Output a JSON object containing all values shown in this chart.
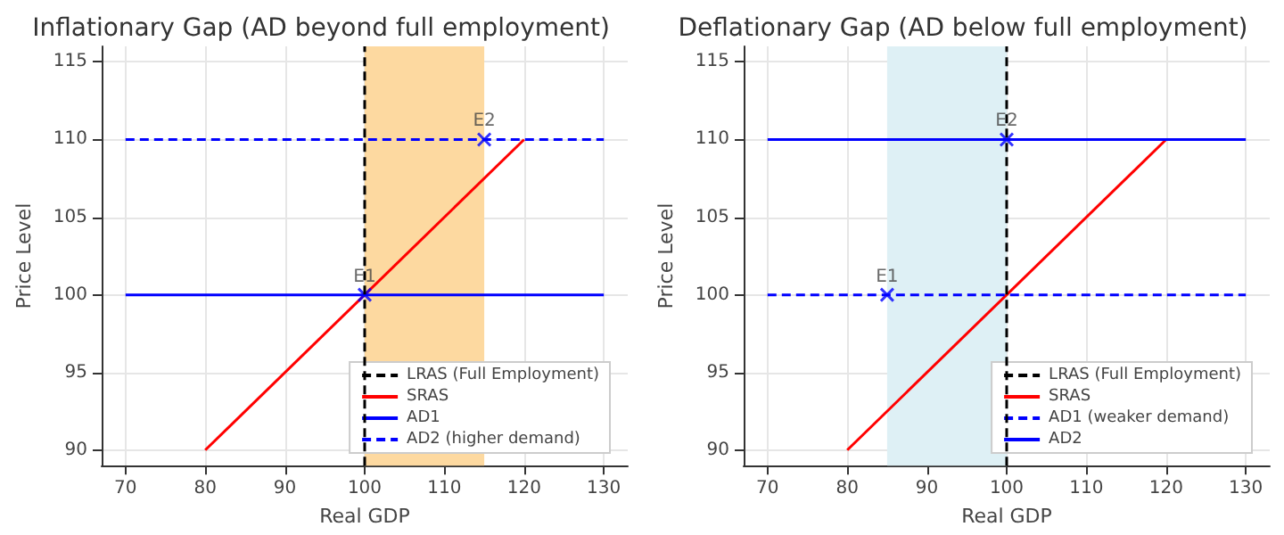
{
  "chart_data": [
    {
      "type": "line",
      "title": "Inflationary Gap (AD beyond full employment)",
      "xlabel": "Real GDP",
      "ylabel": "Price Level",
      "xlim": [
        67,
        133
      ],
      "ylim": [
        89,
        116
      ],
      "xticks": [
        70,
        80,
        90,
        100,
        110,
        120,
        130
      ],
      "yticks": [
        90,
        95,
        100,
        105,
        110,
        115
      ],
      "grid": true,
      "legend": "bottom right",
      "ref_lines": [
        {
          "axis": "x",
          "value": 100,
          "label": "LRAS (Full Employment)",
          "color": "#000000",
          "line_style": "dashed"
        }
      ],
      "bands": [
        {
          "axis": "x",
          "from": 100,
          "to": 115,
          "color": "#fdd9a0"
        }
      ],
      "series": [
        {
          "name": "SRAS",
          "color": "#ff0000",
          "x": [
            80,
            120
          ],
          "values": [
            90,
            110
          ],
          "line_style": "solid",
          "marker": "none"
        },
        {
          "name": "AD1",
          "color": "#0000ff",
          "x": [
            70,
            130
          ],
          "values": [
            100,
            100
          ],
          "line_style": "solid",
          "marker": "none"
        },
        {
          "name": "AD2 (higher demand)",
          "color": "#0000ff",
          "x": [
            70,
            130
          ],
          "values": [
            110,
            110
          ],
          "line_style": "dashed",
          "marker": "none"
        },
        {
          "type": "scatter",
          "color": "#0000ff",
          "x": [
            100,
            115
          ],
          "values": [
            100,
            110
          ],
          "marker": "cross"
        }
      ],
      "annotations": [
        {
          "text": "E1",
          "x": 100,
          "y": 100
        },
        {
          "text": "E2",
          "x": 115,
          "y": 110
        }
      ]
    },
    {
      "type": "line",
      "title": "Deflationary Gap (AD below full employment)",
      "xlabel": "Real GDP",
      "ylabel": "Price Level",
      "xlim": [
        67,
        133
      ],
      "ylim": [
        89,
        116
      ],
      "xticks": [
        70,
        80,
        90,
        100,
        110,
        120,
        130
      ],
      "yticks": [
        90,
        95,
        100,
        105,
        110,
        115
      ],
      "grid": true,
      "legend": "bottom right",
      "ref_lines": [
        {
          "axis": "x",
          "value": 100,
          "label": "LRAS (Full Employment)",
          "color": "#000000",
          "line_style": "dashed"
        }
      ],
      "bands": [
        {
          "axis": "x",
          "from": 85,
          "to": 100,
          "color": "#def0f5"
        }
      ],
      "series": [
        {
          "name": "SRAS",
          "color": "#ff0000",
          "x": [
            80,
            120
          ],
          "values": [
            90,
            110
          ],
          "line_style": "solid",
          "marker": "none"
        },
        {
          "name": "AD1 (weaker demand)",
          "color": "#0000ff",
          "x": [
            70,
            130
          ],
          "values": [
            100,
            100
          ],
          "line_style": "dashed",
          "marker": "none"
        },
        {
          "name": "AD2",
          "color": "#0000ff",
          "x": [
            70,
            130
          ],
          "values": [
            110,
            110
          ],
          "line_style": "solid",
          "marker": "none"
        },
        {
          "type": "scatter",
          "color": "#0000ff",
          "x": [
            85,
            100
          ],
          "values": [
            100,
            110
          ],
          "marker": "cross"
        }
      ],
      "annotations": [
        {
          "text": "E1",
          "x": 85,
          "y": 100
        },
        {
          "text": "E2",
          "x": 100,
          "y": 110
        }
      ]
    }
  ]
}
